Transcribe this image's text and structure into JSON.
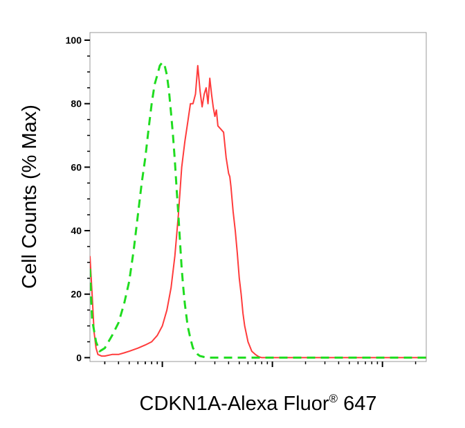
{
  "chart_data": {
    "type": "line",
    "xlabel": "CDKN1A-Alexa Fluor",
    "xlabel_superscript": "®",
    "xlabel_suffix": " 647",
    "ylabel": "Cell Counts (% Max)",
    "x_scale": "log",
    "xlim": [
      2.2,
      2500
    ],
    "ylim": [
      -1,
      100
    ],
    "yticks": [
      0,
      20,
      40,
      60,
      80,
      100
    ],
    "ytick_labels": [
      "0",
      "20",
      "40",
      "60",
      "80",
      "100"
    ],
    "x_major_ticks": [
      10,
      100,
      1000
    ],
    "legend": "none",
    "grid": false,
    "series": [
      {
        "color": "#ff3b3b",
        "style": "solid",
        "x": [
          2.2,
          2.3,
          2.4,
          2.5,
          2.6,
          2.8,
          3.0,
          3.5,
          4.0,
          4.5,
          5.0,
          6.0,
          7.0,
          8.0,
          9.0,
          10.0,
          11.0,
          12.0,
          13.0,
          14.0,
          15.0,
          16.0,
          17.0,
          18.0,
          19.0,
          20.0,
          21.0,
          22.0,
          23.0,
          24.0,
          25.0,
          26.0,
          27.0,
          28.0,
          29.0,
          30.0,
          31.0,
          32.0,
          34.0,
          36.0,
          38.0,
          40.0,
          41.0,
          42.0,
          44.0,
          46.0,
          48.0,
          50.0,
          52.0,
          54.0,
          56.0,
          60.0,
          65.0,
          70.0,
          75.0,
          80.0,
          90.0,
          100.0,
          110.0,
          120.0,
          130.0,
          150.0,
          180.0,
          250.0,
          500.0,
          2500.0
        ],
        "y": [
          32,
          20,
          8,
          3,
          1,
          0.5,
          0.5,
          1,
          1,
          1.5,
          2,
          3,
          4,
          5,
          7,
          10,
          15,
          22,
          32,
          45,
          60,
          68,
          74,
          80,
          80,
          83,
          92,
          84,
          79,
          83,
          85,
          80,
          88,
          83,
          79,
          76,
          78,
          73,
          72,
          71,
          63,
          58,
          57,
          54,
          46,
          40,
          33,
          25,
          20,
          14,
          10,
          5,
          2,
          1,
          0.3,
          0,
          0,
          0,
          0,
          0,
          0,
          0,
          0,
          0,
          0,
          0
        ]
      },
      {
        "color": "#1fdc1f",
        "style": "dashed",
        "x": [
          2.2,
          2.3,
          2.5,
          2.7,
          3.0,
          3.5,
          4.0,
          4.5,
          5.0,
          5.5,
          6.0,
          6.5,
          7.0,
          7.5,
          8.0,
          8.5,
          9.0,
          9.5,
          10.0,
          10.5,
          11.0,
          11.5,
          12.0,
          12.5,
          13.0,
          13.5,
          14.0,
          14.5,
          15.0,
          15.5,
          16.0,
          17.0,
          18.0,
          19.0,
          20.0,
          21.0,
          22.0,
          24.0,
          26.0,
          30.0,
          40.0,
          2500.0
        ],
        "y": [
          28,
          12,
          5,
          2,
          3,
          7,
          11,
          17,
          24,
          34,
          45,
          55,
          63,
          72,
          80,
          86,
          89,
          92,
          93,
          92,
          89,
          84,
          77,
          70,
          62,
          53,
          45,
          36,
          28,
          22,
          17,
          10,
          6,
          3,
          2,
          1,
          0.5,
          0.2,
          0,
          0,
          0,
          0
        ]
      }
    ]
  }
}
